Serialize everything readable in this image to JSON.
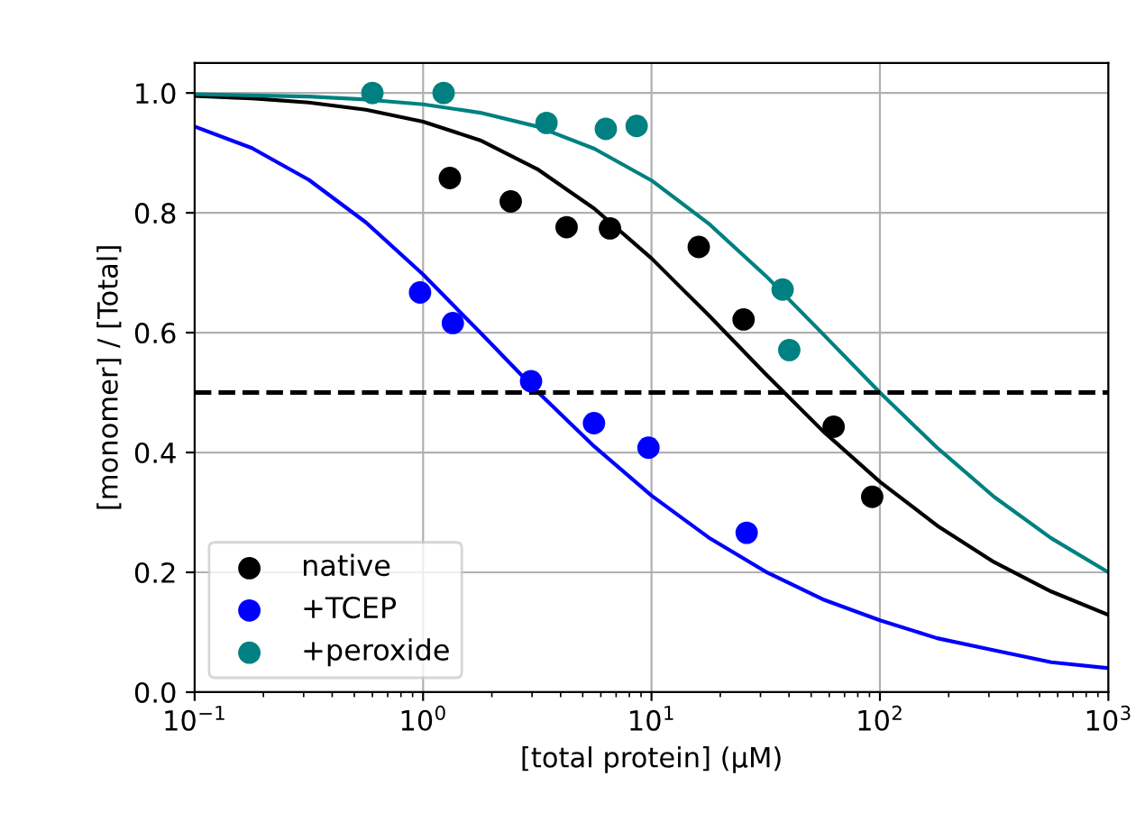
{
  "chart_data": {
    "type": "scatter",
    "xlabel": "[total protein] (μM)",
    "ylabel": "[monomer] / [Total]",
    "log": "x",
    "grid": true,
    "legend": "bottom left",
    "xlim": [
      0.1,
      1000
    ],
    "xticks": [
      {
        "value": 0.1,
        "label": "10$^{−1}$"
      },
      {
        "value": 1,
        "label": "10$^{0}$"
      },
      {
        "value": 10,
        "label": "10$^{1}$"
      },
      {
        "value": 100,
        "label": "10$^{2}$"
      },
      {
        "value": 1000,
        "label": "10$^{3}$"
      }
    ],
    "ylim": [
      0,
      1.05
    ],
    "yticks": [
      {
        "value": 0,
        "label": "0.0"
      },
      {
        "value": 0.2,
        "label": "0.2"
      },
      {
        "value": 0.4,
        "label": "0.4"
      },
      {
        "value": 0.6,
        "label": "0.6"
      },
      {
        "value": 0.8,
        "label": "0.8"
      },
      {
        "value": 1,
        "label": "1.0"
      }
    ],
    "ref_lines": [
      {
        "axis": "y",
        "value": 0.5,
        "color": "#000000",
        "line_style": "dashed"
      }
    ],
    "series": [
      {
        "name": "native",
        "marker": "circle",
        "color": "#000000",
        "x": [
          1.31,
          2.42,
          4.25,
          6.58,
          16.1,
          25.3,
          62.7,
          92.5
        ],
        "values": [
          0.858,
          0.819,
          0.776,
          0.774,
          0.743,
          0.622,
          0.443,
          0.326
        ]
      },
      {
        "name": "+TCEP",
        "marker": "circle",
        "color": "#0000ff",
        "x": [
          0.97,
          1.35,
          2.97,
          5.6,
          9.7,
          26.1
        ],
        "values": [
          0.667,
          0.616,
          0.519,
          0.449,
          0.408,
          0.266
        ]
      },
      {
        "name": "+peroxide",
        "marker": "circle",
        "color": "#008080",
        "x": [
          0.6,
          1.23,
          3.47,
          6.31,
          8.61,
          37.5,
          40.1
        ],
        "values": [
          1.0,
          1.0,
          0.95,
          0.94,
          0.945,
          0.672,
          0.571
        ]
      },
      {
        "type": "line",
        "color": "#000000",
        "x": [
          0.1,
          0.178,
          0.316,
          0.562,
          1,
          1.78,
          3.16,
          5.62,
          10,
          17.8,
          31.6,
          56.2,
          100,
          178,
          316,
          562,
          1000
        ],
        "values": [
          0.995,
          0.991,
          0.984,
          0.972,
          0.952,
          0.921,
          0.873,
          0.807,
          0.724,
          0.629,
          0.531,
          0.436,
          0.351,
          0.278,
          0.217,
          0.168,
          0.129
        ]
      },
      {
        "type": "line",
        "color": "#0000ff",
        "x": [
          0.1,
          0.178,
          0.316,
          0.562,
          1,
          1.78,
          3.16,
          5.62,
          10,
          17.8,
          31.6,
          56.2,
          100,
          178,
          316,
          562,
          1000
        ],
        "values": [
          0.944,
          0.908,
          0.855,
          0.784,
          0.697,
          0.6,
          0.502,
          0.41,
          0.328,
          0.258,
          0.201,
          0.155,
          0.12,
          0.09,
          0.07,
          0.05,
          0.04
        ]
      },
      {
        "type": "line",
        "color": "#008080",
        "x": [
          0.1,
          0.178,
          0.316,
          0.562,
          1,
          1.78,
          3.16,
          5.62,
          10,
          17.8,
          31.6,
          56.2,
          100,
          178,
          316,
          562,
          1000
        ],
        "values": [
          0.998,
          0.996,
          0.994,
          0.989,
          0.981,
          0.967,
          0.944,
          0.907,
          0.854,
          0.782,
          0.695,
          0.598,
          0.5,
          0.408,
          0.326,
          0.257,
          0.2
        ]
      }
    ]
  }
}
